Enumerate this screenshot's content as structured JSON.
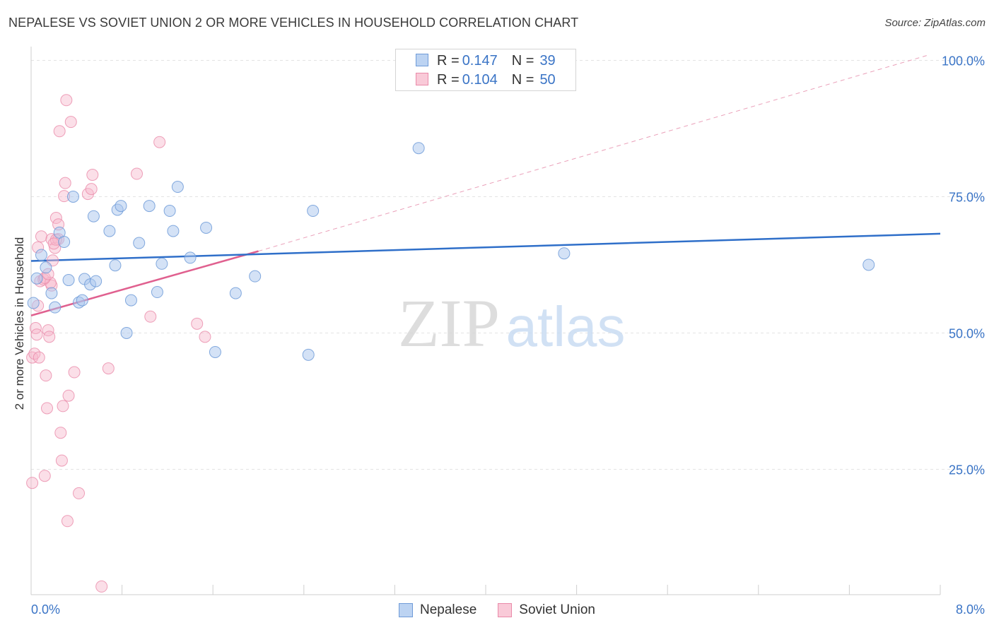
{
  "header": {
    "title": "NEPALESE VS SOVIET UNION 2 OR MORE VEHICLES IN HOUSEHOLD CORRELATION CHART",
    "source": "Source: ZipAtlas.com"
  },
  "legend_top": {
    "rows": [
      {
        "r_label": "R = ",
        "r_value": "0.147",
        "n_label": "N = ",
        "n_value": "39"
      },
      {
        "r_label": "R = ",
        "r_value": "0.104",
        "n_label": "N = ",
        "n_value": "50"
      }
    ]
  },
  "watermark": {
    "part1": "ZIP",
    "part2": "atlas"
  },
  "colors": {
    "nepalese_fill": "#a9c6ee",
    "nepalese_stroke": "#6f9bd8",
    "nepalese_line": "#2f6fc9",
    "soviet_fill": "#f6b9cc",
    "soviet_stroke": "#ea8aa9",
    "soviet_line": "#e0608f",
    "axis_label": "#3a74c6",
    "grid": "#e3e3e3"
  },
  "chart_data": {
    "type": "scatter",
    "title": "NEPALESE VS SOVIET UNION 2 OR MORE VEHICLES IN HOUSEHOLD CORRELATION CHART",
    "xlabel": "",
    "ylabel": "2 or more Vehicles in Household",
    "xlim": [
      0,
      8
    ],
    "ylim": [
      2,
      102
    ],
    "x_tick_labels": [
      "0.0%",
      "8.0%"
    ],
    "y_ticks": [
      25,
      50,
      75,
      100
    ],
    "y_tick_labels": [
      "25.0%",
      "50.0%",
      "75.0%",
      "100.0%"
    ],
    "legend": [
      "Nepalese",
      "Soviet Union"
    ],
    "series": [
      {
        "name": "Nepalese",
        "r": 0.147,
        "n": 39,
        "trend": {
          "x0": 0.0,
          "y0": 63.2,
          "x1": 8.0,
          "y1": 68.2
        },
        "points": [
          [
            0.02,
            55.5
          ],
          [
            0.05,
            60
          ],
          [
            0.09,
            64.3
          ],
          [
            0.13,
            62
          ],
          [
            0.18,
            57.3
          ],
          [
            0.21,
            54.7
          ],
          [
            0.25,
            68.4
          ],
          [
            0.29,
            66.7
          ],
          [
            0.33,
            59.7
          ],
          [
            0.37,
            75
          ],
          [
            0.42,
            55.6
          ],
          [
            0.45,
            56
          ],
          [
            0.47,
            59.9
          ],
          [
            0.52,
            58.9
          ],
          [
            0.57,
            59.5
          ],
          [
            0.55,
            71.4
          ],
          [
            0.69,
            68.7
          ],
          [
            0.74,
            62.4
          ],
          [
            0.76,
            72.6
          ],
          [
            0.79,
            73.3
          ],
          [
            0.84,
            50
          ],
          [
            0.88,
            56
          ],
          [
            0.95,
            66.5
          ],
          [
            1.04,
            73.3
          ],
          [
            1.11,
            57.5
          ],
          [
            1.15,
            62.7
          ],
          [
            1.22,
            72.4
          ],
          [
            1.25,
            68.7
          ],
          [
            1.29,
            76.8
          ],
          [
            1.4,
            63.8
          ],
          [
            1.54,
            69.3
          ],
          [
            1.62,
            46.5
          ],
          [
            1.8,
            57.3
          ],
          [
            1.97,
            60.4
          ],
          [
            2.48,
            72.4
          ],
          [
            2.44,
            46
          ],
          [
            3.41,
            83.9
          ],
          [
            4.69,
            64.6
          ],
          [
            7.37,
            62.5
          ]
        ]
      },
      {
        "name": "Soviet Union",
        "r": 0.104,
        "n": 50,
        "trend": {
          "x0": 0.0,
          "y0": 53.2,
          "x1": 2.0,
          "y1": 65.0
        },
        "trend_extended": {
          "x0": 2.0,
          "y0": 65.0,
          "x1": 7.9,
          "y1": 101.0
        },
        "points": [
          [
            0.01,
            22.5
          ],
          [
            0.01,
            45.5
          ],
          [
            0.03,
            46.2
          ],
          [
            0.04,
            50.9
          ],
          [
            0.05,
            49.7
          ],
          [
            0.06,
            65.7
          ],
          [
            0.06,
            55
          ],
          [
            0.08,
            59.5
          ],
          [
            0.09,
            67.7
          ],
          [
            0.11,
            59.8
          ],
          [
            0.12,
            23.8
          ],
          [
            0.13,
            42.2
          ],
          [
            0.14,
            36.2
          ],
          [
            0.15,
            50.5
          ],
          [
            0.16,
            49.3
          ],
          [
            0.18,
            67.2
          ],
          [
            0.18,
            58.7
          ],
          [
            0.19,
            63.3
          ],
          [
            0.21,
            65.6
          ],
          [
            0.22,
            71.1
          ],
          [
            0.24,
            67.2
          ],
          [
            0.24,
            69.9
          ],
          [
            0.25,
            87
          ],
          [
            0.26,
            31.7
          ],
          [
            0.27,
            26.6
          ],
          [
            0.28,
            36.6
          ],
          [
            0.29,
            75.1
          ],
          [
            0.3,
            77.5
          ],
          [
            0.31,
            92.7
          ],
          [
            0.32,
            15.5
          ],
          [
            0.33,
            38.5
          ],
          [
            0.35,
            88.7
          ],
          [
            0.38,
            42.8
          ],
          [
            0.42,
            20.6
          ],
          [
            0.5,
            75.5
          ],
          [
            0.53,
            76.4
          ],
          [
            0.54,
            79
          ],
          [
            0.62,
            3.5
          ],
          [
            0.68,
            43.5
          ],
          [
            0.93,
            79.2
          ],
          [
            1.05,
            53
          ],
          [
            1.13,
            85
          ],
          [
            1.46,
            51.7
          ],
          [
            1.53,
            49.3
          ],
          [
            0.22,
            67.1
          ],
          [
            0.17,
            59.2
          ],
          [
            0.12,
            60.1
          ],
          [
            0.07,
            45.5
          ],
          [
            0.2,
            66.4
          ],
          [
            0.15,
            60.8
          ]
        ]
      }
    ]
  },
  "legend_bottom": {
    "items": [
      "Nepalese",
      "Soviet Union"
    ]
  }
}
